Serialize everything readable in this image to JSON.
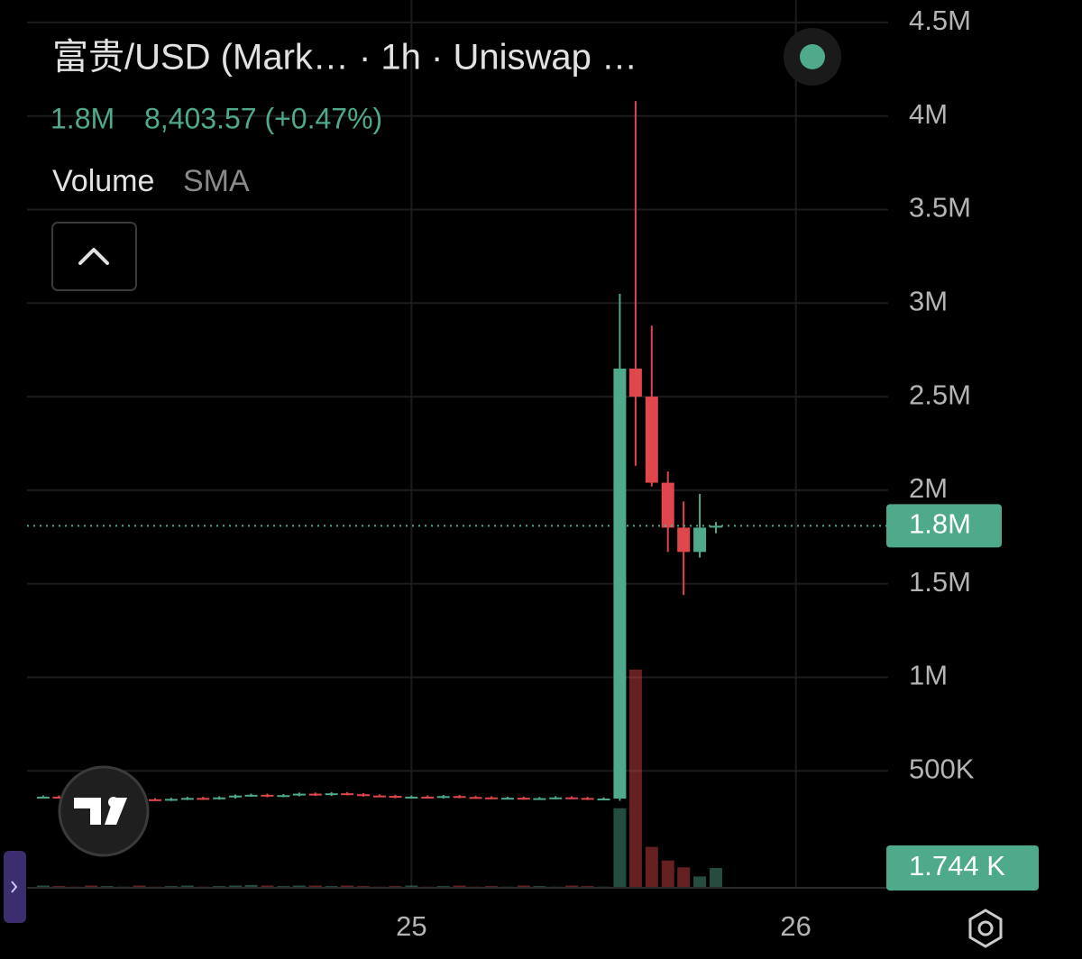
{
  "chart_data": {
    "type": "candlestick",
    "title": "富贵/USD (Mark… · 1h · Uniswap …",
    "last_price_label": "1.8M",
    "change": "8,403.57 (+0.47%)",
    "up_color": "#4fa98b",
    "down_color": "#e0474c",
    "grid": true,
    "x": [
      24.042,
      24.083,
      24.125,
      24.167,
      24.208,
      24.25,
      24.292,
      24.333,
      24.375,
      24.417,
      24.458,
      24.5,
      24.542,
      24.583,
      24.625,
      24.667,
      24.708,
      24.75,
      24.792,
      24.833,
      24.875,
      24.917,
      24.958,
      25,
      25.042,
      25.083,
      25.125,
      25.167,
      25.208,
      25.25,
      25.292,
      25.333,
      25.375,
      25.417,
      25.458,
      25.5,
      25.542,
      25.583,
      25.625,
      25.667,
      25.708,
      25.75,
      25.792
    ],
    "open": [
      360000,
      362000,
      358000,
      355000,
      350000,
      352000,
      356000,
      348000,
      345000,
      350000,
      355000,
      352000,
      358000,
      368000,
      372000,
      365000,
      370000,
      378000,
      372000,
      380000,
      375000,
      368000,
      366000,
      360000,
      362000,
      358000,
      365000,
      360000,
      358000,
      355000,
      356000,
      352000,
      354000,
      358000,
      355000,
      350000,
      352000,
      2650000,
      2500000,
      2040000,
      1800000,
      1670000,
      1800000
    ],
    "high": [
      368000,
      368000,
      364000,
      361000,
      358000,
      362000,
      362000,
      354000,
      356000,
      361000,
      361000,
      364000,
      374000,
      378000,
      378000,
      376000,
      384000,
      384000,
      386000,
      386000,
      381000,
      374000,
      372000,
      368000,
      368000,
      371000,
      371000,
      366000,
      364000,
      362000,
      362000,
      360000,
      364000,
      364000,
      361000,
      358000,
      3050000,
      4080000,
      2880000,
      2100000,
      1940000,
      1980000,
      1830000
    ],
    "low": [
      354000,
      352000,
      349000,
      344000,
      344000,
      346000,
      342000,
      339000,
      339000,
      344000,
      346000,
      346000,
      352000,
      362000,
      359000,
      359000,
      364000,
      366000,
      366000,
      369000,
      362000,
      360000,
      354000,
      354000,
      352000,
      352000,
      354000,
      352000,
      349000,
      349000,
      346000,
      346000,
      348000,
      349000,
      344000,
      344000,
      340000,
      2130000,
      2020000,
      1670000,
      1440000,
      1640000,
      1770000
    ],
    "close": [
      362000,
      358000,
      355000,
      350000,
      352000,
      356000,
      348000,
      345000,
      350000,
      355000,
      352000,
      358000,
      368000,
      372000,
      365000,
      370000,
      378000,
      372000,
      380000,
      375000,
      368000,
      366000,
      360000,
      362000,
      358000,
      365000,
      360000,
      358000,
      355000,
      356000,
      352000,
      354000,
      358000,
      355000,
      350000,
      352000,
      2650000,
      2500000,
      2040000,
      1800000,
      1670000,
      1800000,
      1810000
    ],
    "volume": {
      "name": "Volume",
      "indicator": "SMA",
      "axis": "y2",
      "values": [
        0.2,
        0.15,
        0.1,
        0.2,
        0.15,
        0.1,
        0.2,
        0.1,
        0.15,
        0.2,
        0.1,
        0.15,
        0.2,
        0.25,
        0.2,
        0.15,
        0.2,
        0.2,
        0.15,
        0.2,
        0.15,
        0.1,
        0.15,
        0.2,
        0.1,
        0.15,
        0.2,
        0.1,
        0.15,
        0.1,
        0.2,
        0.15,
        0.1,
        0.2,
        0.15,
        0.1,
        7.0,
        19.2,
        3.6,
        2.4,
        1.8,
        1.0,
        1.744
      ],
      "value_labels": [
        null,
        null,
        null,
        null,
        null,
        null,
        null,
        null,
        null,
        null,
        null,
        null,
        null,
        null,
        null,
        null,
        null,
        null,
        null,
        null,
        null,
        null,
        null,
        null,
        null,
        null,
        null,
        null,
        null,
        null,
        null,
        null,
        null,
        null,
        null,
        null,
        null,
        null,
        null,
        null,
        null,
        null,
        "1.744 K"
      ]
    },
    "xlim": [
      24.0,
      26.24
    ],
    "xticks": [
      25,
      26
    ],
    "ylim": [
      -125000,
      4620000
    ],
    "yticks": [
      {
        "value": 500000,
        "label": "500K"
      },
      {
        "value": 1000000,
        "label": "1M"
      },
      {
        "value": 1500000,
        "label": "1.5M"
      },
      {
        "value": 2000000,
        "label": "2M"
      },
      {
        "value": 2500000,
        "label": "2.5M"
      },
      {
        "value": 3000000,
        "label": "3M"
      },
      {
        "value": 3500000,
        "label": "3.5M"
      },
      {
        "value": 4000000,
        "label": "4M"
      },
      {
        "value": 4500000,
        "label": "4.5M"
      }
    ],
    "y2lim": [
      0,
      22.6
    ]
  }
}
